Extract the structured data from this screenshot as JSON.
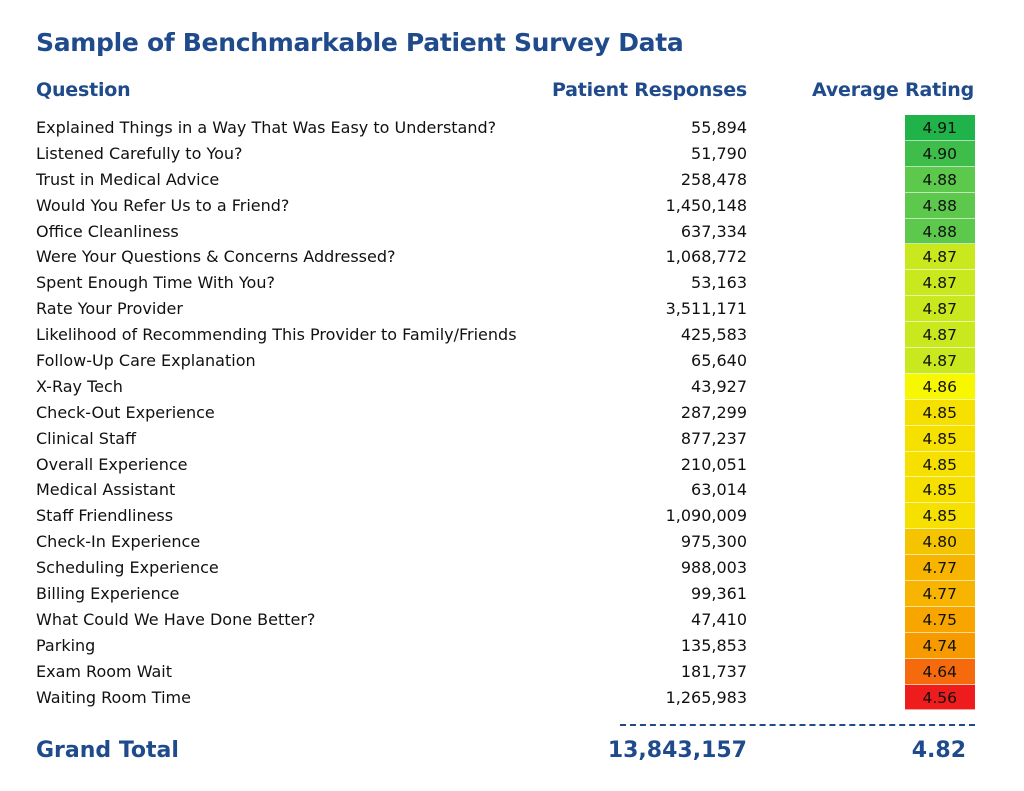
{
  "title": "Sample of Benchmarkable Patient Survey Data",
  "headers": {
    "question": "Question",
    "responses": "Patient Responses",
    "rating": "Average Rating"
  },
  "rows": [
    {
      "question": "Explained Things in a Way That Was Easy to Understand?",
      "responses": "55,894",
      "rating": "4.91",
      "color": "#1fb34a"
    },
    {
      "question": "Listened Carefully to You?",
      "responses": "51,790",
      "rating": "4.90",
      "color": "#3ebd4a"
    },
    {
      "question": "Trust in Medical Advice",
      "responses": "258,478",
      "rating": "4.88",
      "color": "#5cc94d"
    },
    {
      "question": "Would You Refer Us to a Friend?",
      "responses": "1,450,148",
      "rating": "4.88",
      "color": "#5cc94d"
    },
    {
      "question": "Office Cleanliness",
      "responses": "637,334",
      "rating": "4.88",
      "color": "#5cc94d"
    },
    {
      "question": "Were Your Questions & Concerns Addressed?",
      "responses": "1,068,772",
      "rating": "4.87",
      "color": "#c9e81e"
    },
    {
      "question": "Spent Enough Time With You?",
      "responses": "53,163",
      "rating": "4.87",
      "color": "#c9e81e"
    },
    {
      "question": "Rate Your Provider",
      "responses": "3,511,171",
      "rating": "4.87",
      "color": "#c9e81e"
    },
    {
      "question": "Likelihood of Recommending This Provider to Family/Friends",
      "responses": "425,583",
      "rating": "4.87",
      "color": "#c9e81e"
    },
    {
      "question": "Follow-Up Care Explanation",
      "responses": "65,640",
      "rating": "4.87",
      "color": "#c9e81e"
    },
    {
      "question": "X-Ray Tech",
      "responses": "43,927",
      "rating": "4.86",
      "color": "#f7f700"
    },
    {
      "question": "Check-Out Experience",
      "responses": "287,299",
      "rating": "4.85",
      "color": "#f5e000"
    },
    {
      "question": "Clinical Staff",
      "responses": "877,237",
      "rating": "4.85",
      "color": "#f5e000"
    },
    {
      "question": "Overall Experience",
      "responses": "210,051",
      "rating": "4.85",
      "color": "#f5e000"
    },
    {
      "question": "Medical Assistant",
      "responses": "63,014",
      "rating": "4.85",
      "color": "#f5e000"
    },
    {
      "question": "Staff Friendliness",
      "responses": "1,090,009",
      "rating": "4.85",
      "color": "#f5e000"
    },
    {
      "question": "Check-In Experience",
      "responses": "975,300",
      "rating": "4.80",
      "color": "#f5c400"
    },
    {
      "question": "Scheduling Experience",
      "responses": "988,003",
      "rating": "4.77",
      "color": "#f7b400"
    },
    {
      "question": "Billing Experience",
      "responses": "99,361",
      "rating": "4.77",
      "color": "#f7b400"
    },
    {
      "question": "What Could We Have Done Better?",
      "responses": "47,410",
      "rating": "4.75",
      "color": "#f8a500"
    },
    {
      "question": "Parking",
      "responses": "135,853",
      "rating": "4.74",
      "color": "#f79a00"
    },
    {
      "question": "Exam Room Wait",
      "responses": "181,737",
      "rating": "4.64",
      "color": "#f56a0c"
    },
    {
      "question": "Waiting Room Time",
      "responses": "1,265,983",
      "rating": "4.56",
      "color": "#ee1c1c"
    }
  ],
  "total": {
    "label": "Grand Total",
    "responses": "13,843,157",
    "rating": "4.82"
  }
}
